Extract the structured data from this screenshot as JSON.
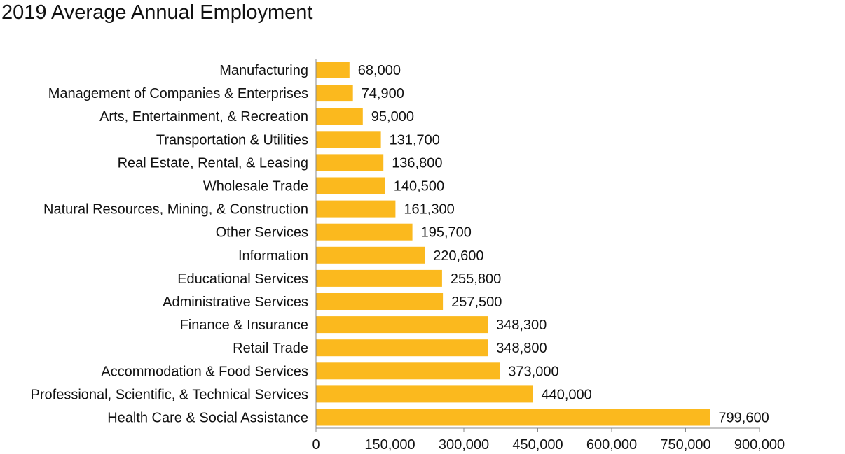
{
  "chart_data": {
    "type": "bar",
    "orientation": "horizontal",
    "title": "2019 Average Annual Employment",
    "xlabel": "",
    "ylabel": "",
    "categories": [
      "Manufacturing",
      "Management of Companies & Enterprises",
      "Arts, Entertainment, & Recreation",
      "Transportation & Utilities",
      "Real Estate, Rental, & Leasing",
      "Wholesale Trade",
      "Natural Resources, Mining, & Construction",
      "Other Services",
      "Information",
      "Educational Services",
      "Administrative Services",
      "Finance & Insurance",
      "Retail Trade",
      "Accommodation & Food Services",
      "Professional, Scientific, & Technical Services",
      "Health Care & Social Assistance"
    ],
    "values": [
      68000,
      74900,
      95000,
      131700,
      136800,
      140500,
      161300,
      195700,
      220600,
      255800,
      257500,
      348300,
      348800,
      373000,
      440000,
      799600
    ],
    "value_labels": [
      "68,000",
      "74,900",
      "95,000",
      "131,700",
      "136,800",
      "140,500",
      "161,300",
      "195,700",
      "220,600",
      "255,800",
      "257,500",
      "348,300",
      "348,800",
      "373,000",
      "440,000",
      "799,600"
    ],
    "xlim": [
      0,
      900000
    ],
    "x_ticks": [
      0,
      150000,
      300000,
      450000,
      600000,
      750000,
      900000
    ],
    "x_tick_labels": [
      "0",
      "150,000",
      "300,000",
      "450,000",
      "600,000",
      "750,000",
      "900,000"
    ],
    "bar_color": "#FBB91E",
    "grid": false,
    "legend": "none"
  }
}
